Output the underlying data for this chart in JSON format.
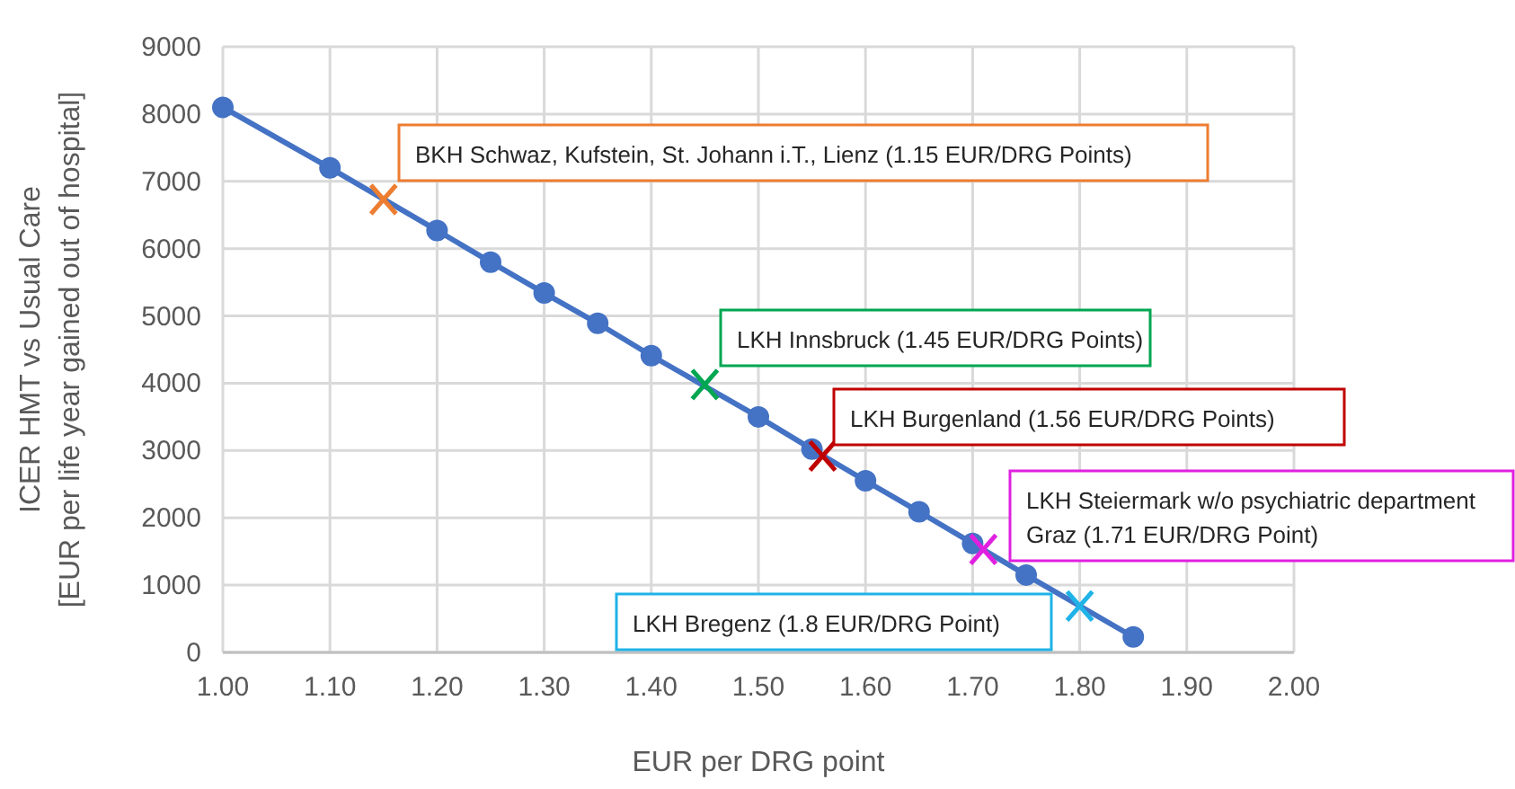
{
  "chart_data": {
    "type": "line",
    "xlabel": "EUR per DRG point",
    "ylabel": "ICER HMT vs Usual Care\n[EUR per life year gained out of hospital]",
    "xlim": [
      1.0,
      2.0
    ],
    "xticks": [
      {
        "value": 1.0,
        "label": "1.00"
      },
      {
        "value": 1.1,
        "label": "1.10"
      },
      {
        "value": 1.2,
        "label": "1.20"
      },
      {
        "value": 1.3,
        "label": "1.30"
      },
      {
        "value": 1.4,
        "label": "1.40"
      },
      {
        "value": 1.5,
        "label": "1.50"
      },
      {
        "value": 1.6,
        "label": "1.60"
      },
      {
        "value": 1.7,
        "label": "1.70"
      },
      {
        "value": 1.8,
        "label": "1.80"
      },
      {
        "value": 1.9,
        "label": "1.90"
      },
      {
        "value": 2.0,
        "label": "2.00"
      }
    ],
    "ylim": [
      0,
      9000
    ],
    "yticks": [
      0,
      1000,
      2000,
      3000,
      4000,
      5000,
      6000,
      7000,
      8000,
      9000
    ],
    "grid": true,
    "marker": "circle",
    "line_style": "solid",
    "series": [
      {
        "color": "#4472c4",
        "x": [
          1.0,
          1.1,
          1.2,
          1.25,
          1.3,
          1.35,
          1.4,
          1.5,
          1.55,
          1.6,
          1.65,
          1.7,
          1.75,
          1.85
        ],
        "values": [
          8100,
          7200,
          6270,
          5800,
          5340,
          4890,
          4410,
          3500,
          3020,
          2550,
          2090,
          1620,
          1150,
          230
        ]
      },
      {
        "type": "scatter",
        "marker": "cross",
        "color": "#ed7d31",
        "x": [
          1.15
        ],
        "values": [
          6730
        ]
      },
      {
        "type": "scatter",
        "marker": "cross",
        "color": "#00a651",
        "x": [
          1.45
        ],
        "values": [
          3980
        ]
      },
      {
        "type": "scatter",
        "marker": "cross",
        "color": "#c00000",
        "x": [
          1.56
        ],
        "values": [
          2920
        ]
      },
      {
        "type": "scatter",
        "marker": "cross",
        "color": "#e020e0",
        "x": [
          1.71
        ],
        "values": [
          1530
        ]
      },
      {
        "type": "scatter",
        "marker": "cross",
        "color": "#1fb3e8",
        "x": [
          1.8
        ],
        "values": [
          690
        ]
      }
    ],
    "annotations": [
      "BKH Schwaz, Kufstein, St. Johann i.T., Lienz (1.15 EUR/DRG Points)",
      "LKH Innsbruck (1.45 EUR/DRG Points)",
      "LKH Burgenland (1.56 EUR/DRG Points)",
      "LKH Steiermark w/o psychiatric department Graz (1.71 EUR/DRG Point)",
      "LKH Bregenz (1.8 EUR/DRG Point)"
    ]
  }
}
